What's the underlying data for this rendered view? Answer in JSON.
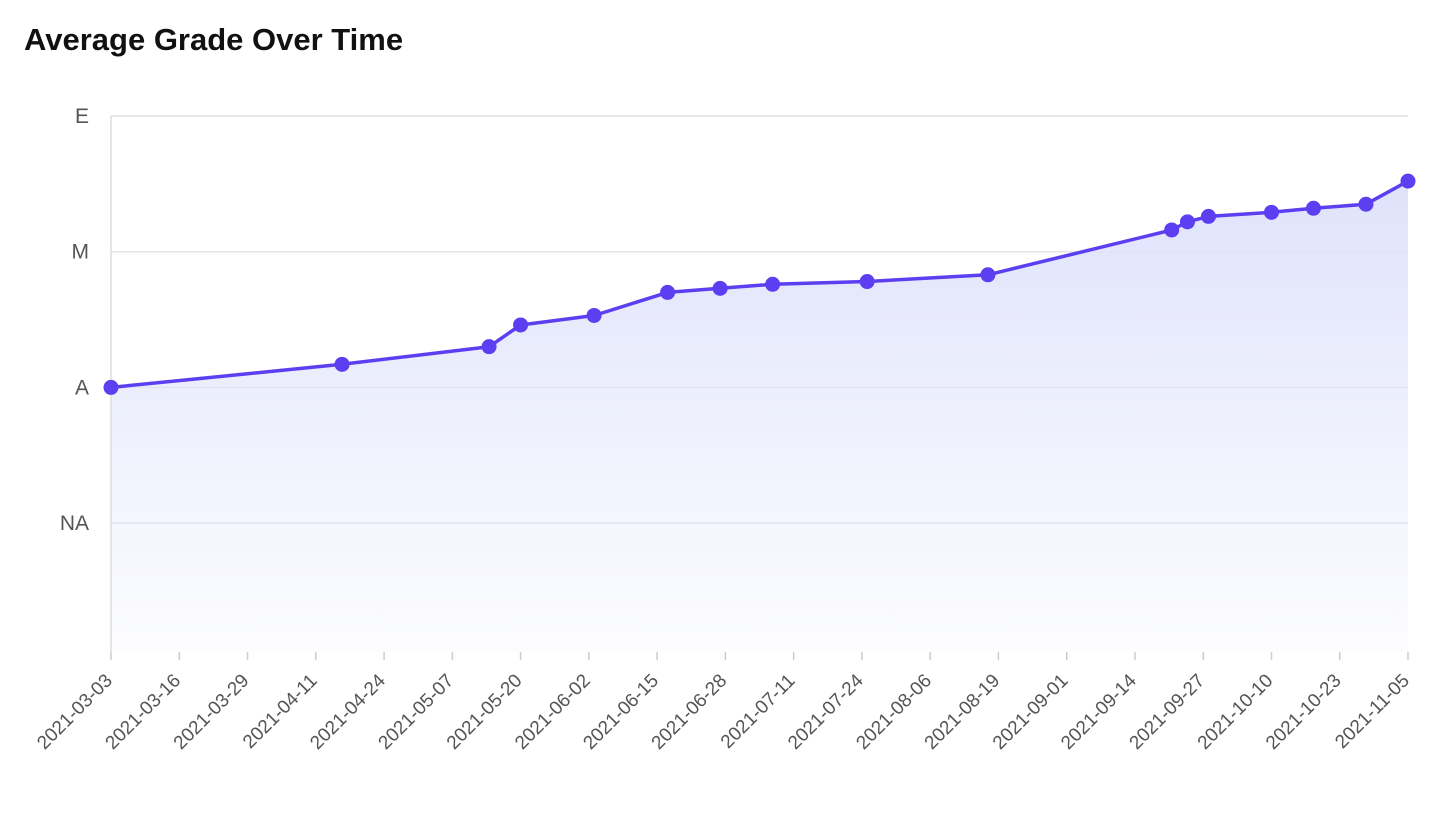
{
  "chart_data": {
    "type": "area",
    "title": "Average Grade Over Time",
    "xlabel": "",
    "ylabel": "",
    "y_scale": "ordinal",
    "y_ticks": [
      "NA",
      "A",
      "M",
      "E"
    ],
    "y_tick_values": [
      1,
      2,
      3,
      4
    ],
    "ylim": [
      0.05,
      4.0
    ],
    "x_ticks": [
      "2021-03-03",
      "2021-03-16",
      "2021-03-29",
      "2021-04-11",
      "2021-04-24",
      "2021-05-07",
      "2021-05-20",
      "2021-06-02",
      "2021-06-15",
      "2021-06-28",
      "2021-07-11",
      "2021-07-24",
      "2021-08-06",
      "2021-08-19",
      "2021-09-01",
      "2021-09-14",
      "2021-09-27",
      "2021-10-10",
      "2021-10-23",
      "2021-11-05"
    ],
    "xlim": [
      "2021-03-03",
      "2021-11-05"
    ],
    "grid": true,
    "line_color": "#5b3ff0",
    "fill_color": "#dfe3fb",
    "points": [
      {
        "x": "2021-03-03",
        "y": 2.0
      },
      {
        "x": "2021-04-16",
        "y": 2.17
      },
      {
        "x": "2021-05-14",
        "y": 2.3
      },
      {
        "x": "2021-05-20",
        "y": 2.46
      },
      {
        "x": "2021-06-03",
        "y": 2.53
      },
      {
        "x": "2021-06-17",
        "y": 2.7
      },
      {
        "x": "2021-06-27",
        "y": 2.73
      },
      {
        "x": "2021-07-07",
        "y": 2.76
      },
      {
        "x": "2021-07-25",
        "y": 2.78
      },
      {
        "x": "2021-08-17",
        "y": 2.83
      },
      {
        "x": "2021-09-21",
        "y": 3.16
      },
      {
        "x": "2021-09-24",
        "y": 3.22
      },
      {
        "x": "2021-09-28",
        "y": 3.26
      },
      {
        "x": "2021-10-10",
        "y": 3.29
      },
      {
        "x": "2021-10-18",
        "y": 3.32
      },
      {
        "x": "2021-10-28",
        "y": 3.35
      },
      {
        "x": "2021-11-05",
        "y": 3.52
      }
    ]
  }
}
